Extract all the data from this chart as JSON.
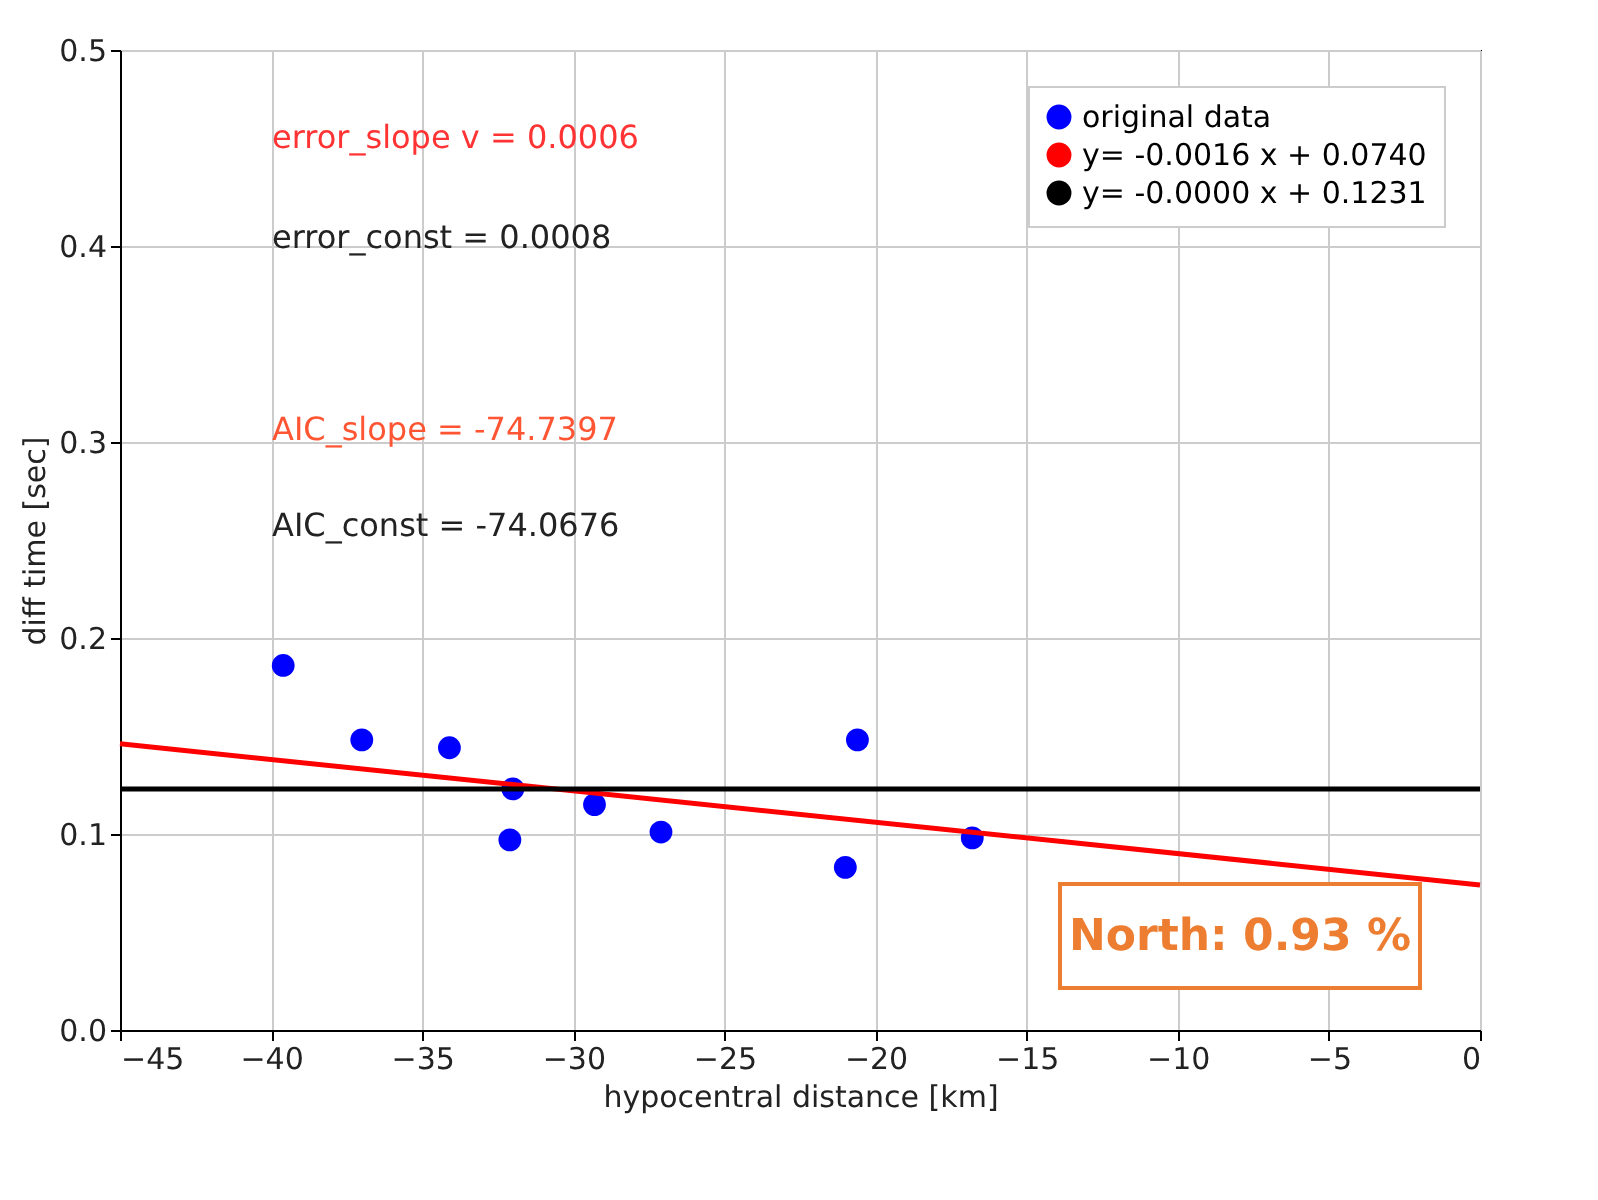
{
  "chart_data": {
    "type": "line",
    "xlabel": "hypocentral distance [km]",
    "ylabel": "diff time [sec]",
    "xlim": [
      -45,
      0
    ],
    "xticks": [
      -45,
      -40,
      -35,
      -30,
      -25,
      -20,
      -15,
      -10,
      -5,
      0
    ],
    "ylim": [
      0,
      0.5
    ],
    "yticks": [
      {
        "value": 0,
        "label": "0.0"
      },
      {
        "value": 0.1,
        "label": "0.1"
      },
      {
        "value": 0.2,
        "label": "0.2"
      },
      {
        "value": 0.3,
        "label": "0.3"
      },
      {
        "value": 0.4,
        "label": "0.4"
      },
      {
        "value": 0.5,
        "label": "0.5"
      }
    ],
    "grid": true,
    "legend": "top right",
    "series": [
      {
        "name": "original data",
        "type": "scatter",
        "marker": "circle",
        "color": "#0000ff",
        "x": [
          -39.6,
          -37.0,
          -34.1,
          -32.0,
          -32.1,
          -29.3,
          -27.1,
          -21.0,
          -20.6,
          -16.8
        ],
        "values": [
          0.186,
          0.148,
          0.144,
          0.123,
          0.097,
          0.115,
          0.101,
          0.083,
          0.148,
          0.098
        ]
      },
      {
        "name": "y= -0.0016 x + 0.0740",
        "color": "#ff0000",
        "x": [
          -45,
          0
        ],
        "values": [
          0.146,
          0.074
        ]
      },
      {
        "name": "y= -0.0000 x + 0.1231",
        "color": "#000000",
        "x": [
          -45,
          0
        ],
        "values": [
          0.123,
          0.123
        ]
      }
    ],
    "annotations": [
      "error_slope v = 0.0006",
      "error_const = 0.0008",
      "AIC_slope = -74.7397",
      "AIC_const = -74.0676",
      "North: 0.93 %"
    ]
  }
}
